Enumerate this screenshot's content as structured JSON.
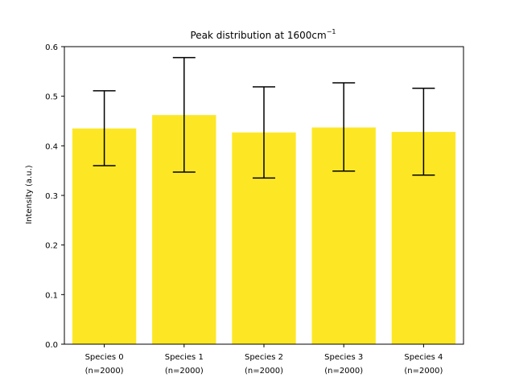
{
  "chart_data": {
    "type": "bar",
    "title": "Peak distribution at 1600cm",
    "title_superscript": "−1",
    "xlabel": "",
    "ylabel": "Intensity (a.u.)",
    "categories": [
      [
        "Species 0",
        "(n=2000)"
      ],
      [
        "Species 1",
        "(n=2000)"
      ],
      [
        "Species 2",
        "(n=2000)"
      ],
      [
        "Species 3",
        "(n=2000)"
      ],
      [
        "Species 4",
        "(n=2000)"
      ]
    ],
    "values": [
      0.435,
      0.462,
      0.427,
      0.437,
      0.428
    ],
    "error_low": [
      0.36,
      0.347,
      0.335,
      0.349,
      0.341
    ],
    "error_high": [
      0.511,
      0.578,
      0.519,
      0.527,
      0.516
    ],
    "ylim": [
      0,
      0.6
    ],
    "yticks": [
      "0.0",
      "0.1",
      "0.2",
      "0.3",
      "0.4",
      "0.5",
      "0.6"
    ],
    "bar_color": "#fde725",
    "grid": false,
    "legend": "none"
  }
}
